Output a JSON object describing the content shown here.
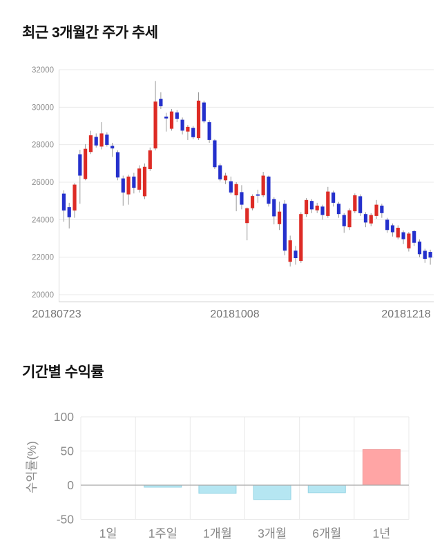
{
  "price_chart": {
    "title": "최근 3개월간 주가 추세"
  },
  "returns_chart": {
    "title": "기간별 수익률"
  },
  "chart_data": [
    {
      "type": "candlestick",
      "title": "최근 3개월간 주가 추세",
      "ylim": [
        20000,
        32000
      ],
      "y_ticks": [
        32000,
        30000,
        28000,
        26000,
        24000,
        22000,
        20000
      ],
      "x_tick_labels": [
        "20180723",
        "20181008",
        "20181218"
      ],
      "up_color": "#dd2b25",
      "down_color": "#2430cc",
      "wick_color": "#999999",
      "grid_color": "#e9e9e9",
      "axis_line_color": "#c4c4c4",
      "tick_text_color": "#8c8c8c",
      "x_label_color": "#757575",
      "candles_ohlc": [
        [
          25390,
          25570,
          23890,
          24490
        ],
        [
          24670,
          24900,
          23530,
          24130
        ],
        [
          24490,
          25950,
          24100,
          25870
        ],
        [
          27490,
          27730,
          24850,
          26350
        ],
        [
          26170,
          28030,
          26100,
          27780
        ],
        [
          27610,
          28740,
          27500,
          28500
        ],
        [
          28420,
          28600,
          27850,
          27960
        ],
        [
          27900,
          29200,
          27750,
          28600
        ],
        [
          28540,
          28660,
          27900,
          27990
        ],
        [
          27940,
          28100,
          27350,
          27800
        ],
        [
          27600,
          27700,
          26100,
          26250
        ],
        [
          26200,
          26350,
          24750,
          25450
        ],
        [
          25350,
          26400,
          24800,
          26300
        ],
        [
          26300,
          26500,
          25400,
          25700
        ],
        [
          25600,
          26900,
          25450,
          26730
        ],
        [
          25250,
          27000,
          25100,
          26820
        ],
        [
          26700,
          27850,
          26600,
          27700
        ],
        [
          27800,
          31400,
          27700,
          30300
        ],
        [
          30450,
          30800,
          29900,
          30050
        ],
        [
          29500,
          29700,
          28700,
          29400
        ],
        [
          28850,
          29900,
          28750,
          29770
        ],
        [
          29720,
          29850,
          29200,
          29380
        ],
        [
          29330,
          29450,
          28550,
          28750
        ],
        [
          28700,
          29050,
          28250,
          28950
        ],
        [
          28900,
          29000,
          28300,
          28400
        ],
        [
          28350,
          30800,
          28250,
          30350
        ],
        [
          30250,
          30350,
          29150,
          29250
        ],
        [
          29200,
          29300,
          28100,
          28250
        ],
        [
          28230,
          28300,
          26700,
          26800
        ],
        [
          26900,
          27000,
          26050,
          26150
        ],
        [
          26100,
          26500,
          25900,
          26350
        ],
        [
          26050,
          26300,
          25350,
          25450
        ],
        [
          25300,
          26000,
          24450,
          25900
        ],
        [
          25470,
          25840,
          24550,
          24800
        ],
        [
          23820,
          24650,
          22900,
          24610
        ],
        [
          24610,
          25350,
          24500,
          25260
        ],
        [
          25350,
          25600,
          24900,
          25280
        ],
        [
          25300,
          26550,
          25200,
          26350
        ],
        [
          26300,
          26350,
          24700,
          24850
        ],
        [
          25100,
          25200,
          23750,
          24180
        ],
        [
          23760,
          24960,
          23450,
          24430
        ],
        [
          24850,
          25040,
          22100,
          22350
        ],
        [
          21750,
          23150,
          21500,
          22900
        ],
        [
          22350,
          22600,
          21600,
          21950
        ],
        [
          21800,
          24400,
          21700,
          24300
        ],
        [
          24300,
          25150,
          24150,
          25050
        ],
        [
          25000,
          25100,
          24350,
          24550
        ],
        [
          24500,
          24900,
          24350,
          24750
        ],
        [
          24700,
          24800,
          24000,
          24250
        ],
        [
          24200,
          25750,
          24100,
          25500
        ],
        [
          25450,
          25550,
          24700,
          24900
        ],
        [
          24850,
          24950,
          24100,
          24300
        ],
        [
          24250,
          24350,
          23300,
          23650
        ],
        [
          23600,
          24600,
          23450,
          24500
        ],
        [
          24450,
          25400,
          24350,
          25300
        ],
        [
          25250,
          25350,
          24200,
          24350
        ],
        [
          24300,
          24400,
          23600,
          23850
        ],
        [
          23800,
          24350,
          23650,
          24250
        ],
        [
          24200,
          25050,
          24050,
          24800
        ],
        [
          24750,
          24850,
          24100,
          24350
        ],
        [
          24000,
          24100,
          23300,
          23450
        ],
        [
          23700,
          23800,
          23100,
          23330
        ],
        [
          23050,
          23700,
          22950,
          23570
        ],
        [
          23330,
          23430,
          22700,
          22960
        ],
        [
          22470,
          23350,
          22300,
          23260
        ],
        [
          23390,
          23450,
          22600,
          22770
        ],
        [
          22830,
          22950,
          22000,
          22160
        ],
        [
          22340,
          22450,
          21700,
          21910
        ],
        [
          22280,
          22400,
          21600,
          21980
        ]
      ]
    },
    {
      "type": "bar",
      "title": "기간별 수익률",
      "categories": [
        "1일",
        "1주일",
        "1개월",
        "3개월",
        "6개월",
        "1년"
      ],
      "values": [
        0,
        -3,
        -12,
        -21,
        -11,
        52
      ],
      "ylabel": "수익률(%)",
      "y_ticks": [
        100,
        50,
        0,
        -50
      ],
      "ylim": [
        -50,
        100
      ],
      "positive_color": "#ffa5a5",
      "positive_border": "#f19999",
      "negative_color": "#b5e6f2",
      "negative_border": "#93d4e4",
      "grid_color": "#e8e8e8",
      "zero_line_color": "#a8a8a8",
      "tick_text_color": "#8a8a8a",
      "category_text_color": "#888888"
    }
  ]
}
